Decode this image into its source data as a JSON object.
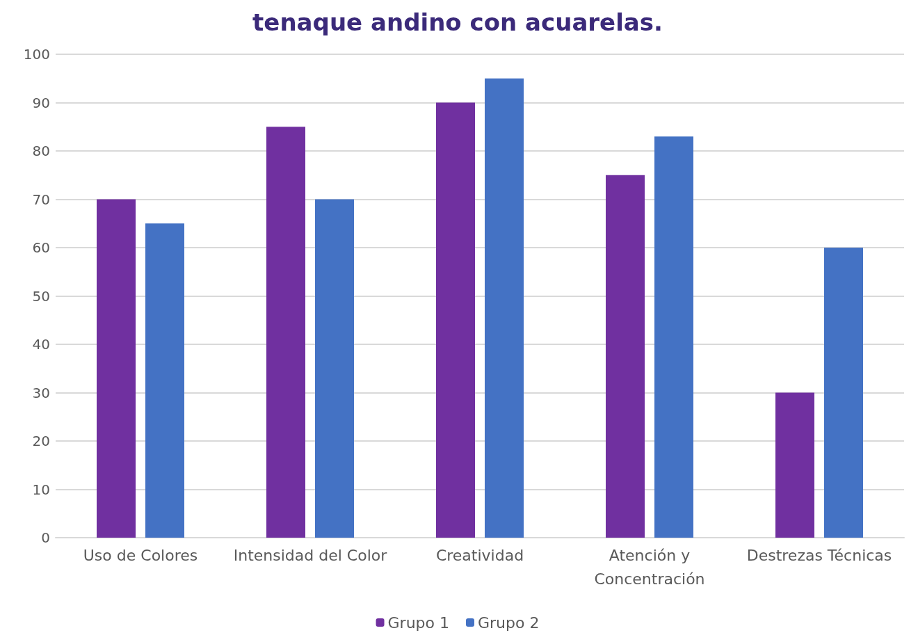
{
  "chart_data": {
    "type": "bar",
    "title": "tenaque andino con acuarelas.",
    "categories": [
      "Uso de Colores",
      "Intensidad del Color",
      "Creatividad",
      "Atención y\nConcentración",
      "Destrezas Técnicas"
    ],
    "series": [
      {
        "name": "Grupo 1",
        "color": "#7030a0",
        "values": [
          70,
          85,
          90,
          75,
          30
        ]
      },
      {
        "name": "Grupo 2",
        "color": "#4472c4",
        "values": [
          65,
          70,
          95,
          83,
          60
        ]
      }
    ],
    "ylim": [
      0,
      100
    ],
    "yticks": [
      0,
      10,
      20,
      30,
      40,
      50,
      60,
      70,
      80,
      90,
      100
    ],
    "grid": "y",
    "legend": "bottom"
  }
}
